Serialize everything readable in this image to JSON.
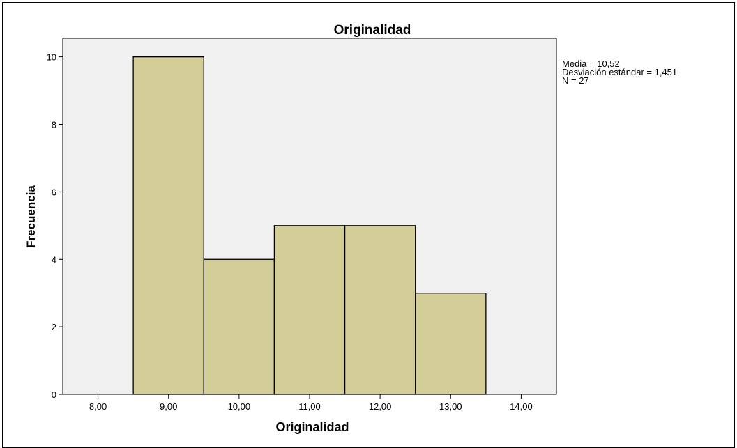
{
  "chart_data": {
    "type": "bar",
    "title": "Originalidad",
    "xlabel": "Originalidad",
    "ylabel": "Frecuencia",
    "bins": [
      {
        "start": 8.5,
        "end": 9.5,
        "value": 10
      },
      {
        "start": 9.5,
        "end": 10.5,
        "value": 4
      },
      {
        "start": 10.5,
        "end": 11.5,
        "value": 5
      },
      {
        "start": 11.5,
        "end": 12.5,
        "value": 5
      },
      {
        "start": 12.5,
        "end": 13.5,
        "value": 3
      }
    ],
    "xlim": [
      7.5,
      14.5
    ],
    "ylim": [
      0,
      10.55
    ],
    "xticks": [
      {
        "value": 8,
        "label": "8,00"
      },
      {
        "value": 9,
        "label": "9,00"
      },
      {
        "value": 10,
        "label": "10,00"
      },
      {
        "value": 11,
        "label": "11,00"
      },
      {
        "value": 12,
        "label": "12,00"
      },
      {
        "value": 13,
        "label": "13,00"
      },
      {
        "value": 14,
        "label": "14,00"
      }
    ],
    "yticks": [
      {
        "value": 0,
        "label": "0"
      },
      {
        "value": 2,
        "label": "2"
      },
      {
        "value": 4,
        "label": "4"
      },
      {
        "value": 6,
        "label": "6"
      },
      {
        "value": 8,
        "label": "8"
      },
      {
        "value": 10,
        "label": "10"
      }
    ],
    "annotations": [
      "Media = 10,52",
      "Desviación estándar = 1,451",
      "N = 27"
    ],
    "grid": false,
    "colors": {
      "plot_background": "#f0f0f0",
      "bar_fill": "#d3ce97",
      "bar_stroke": "#000000"
    }
  }
}
